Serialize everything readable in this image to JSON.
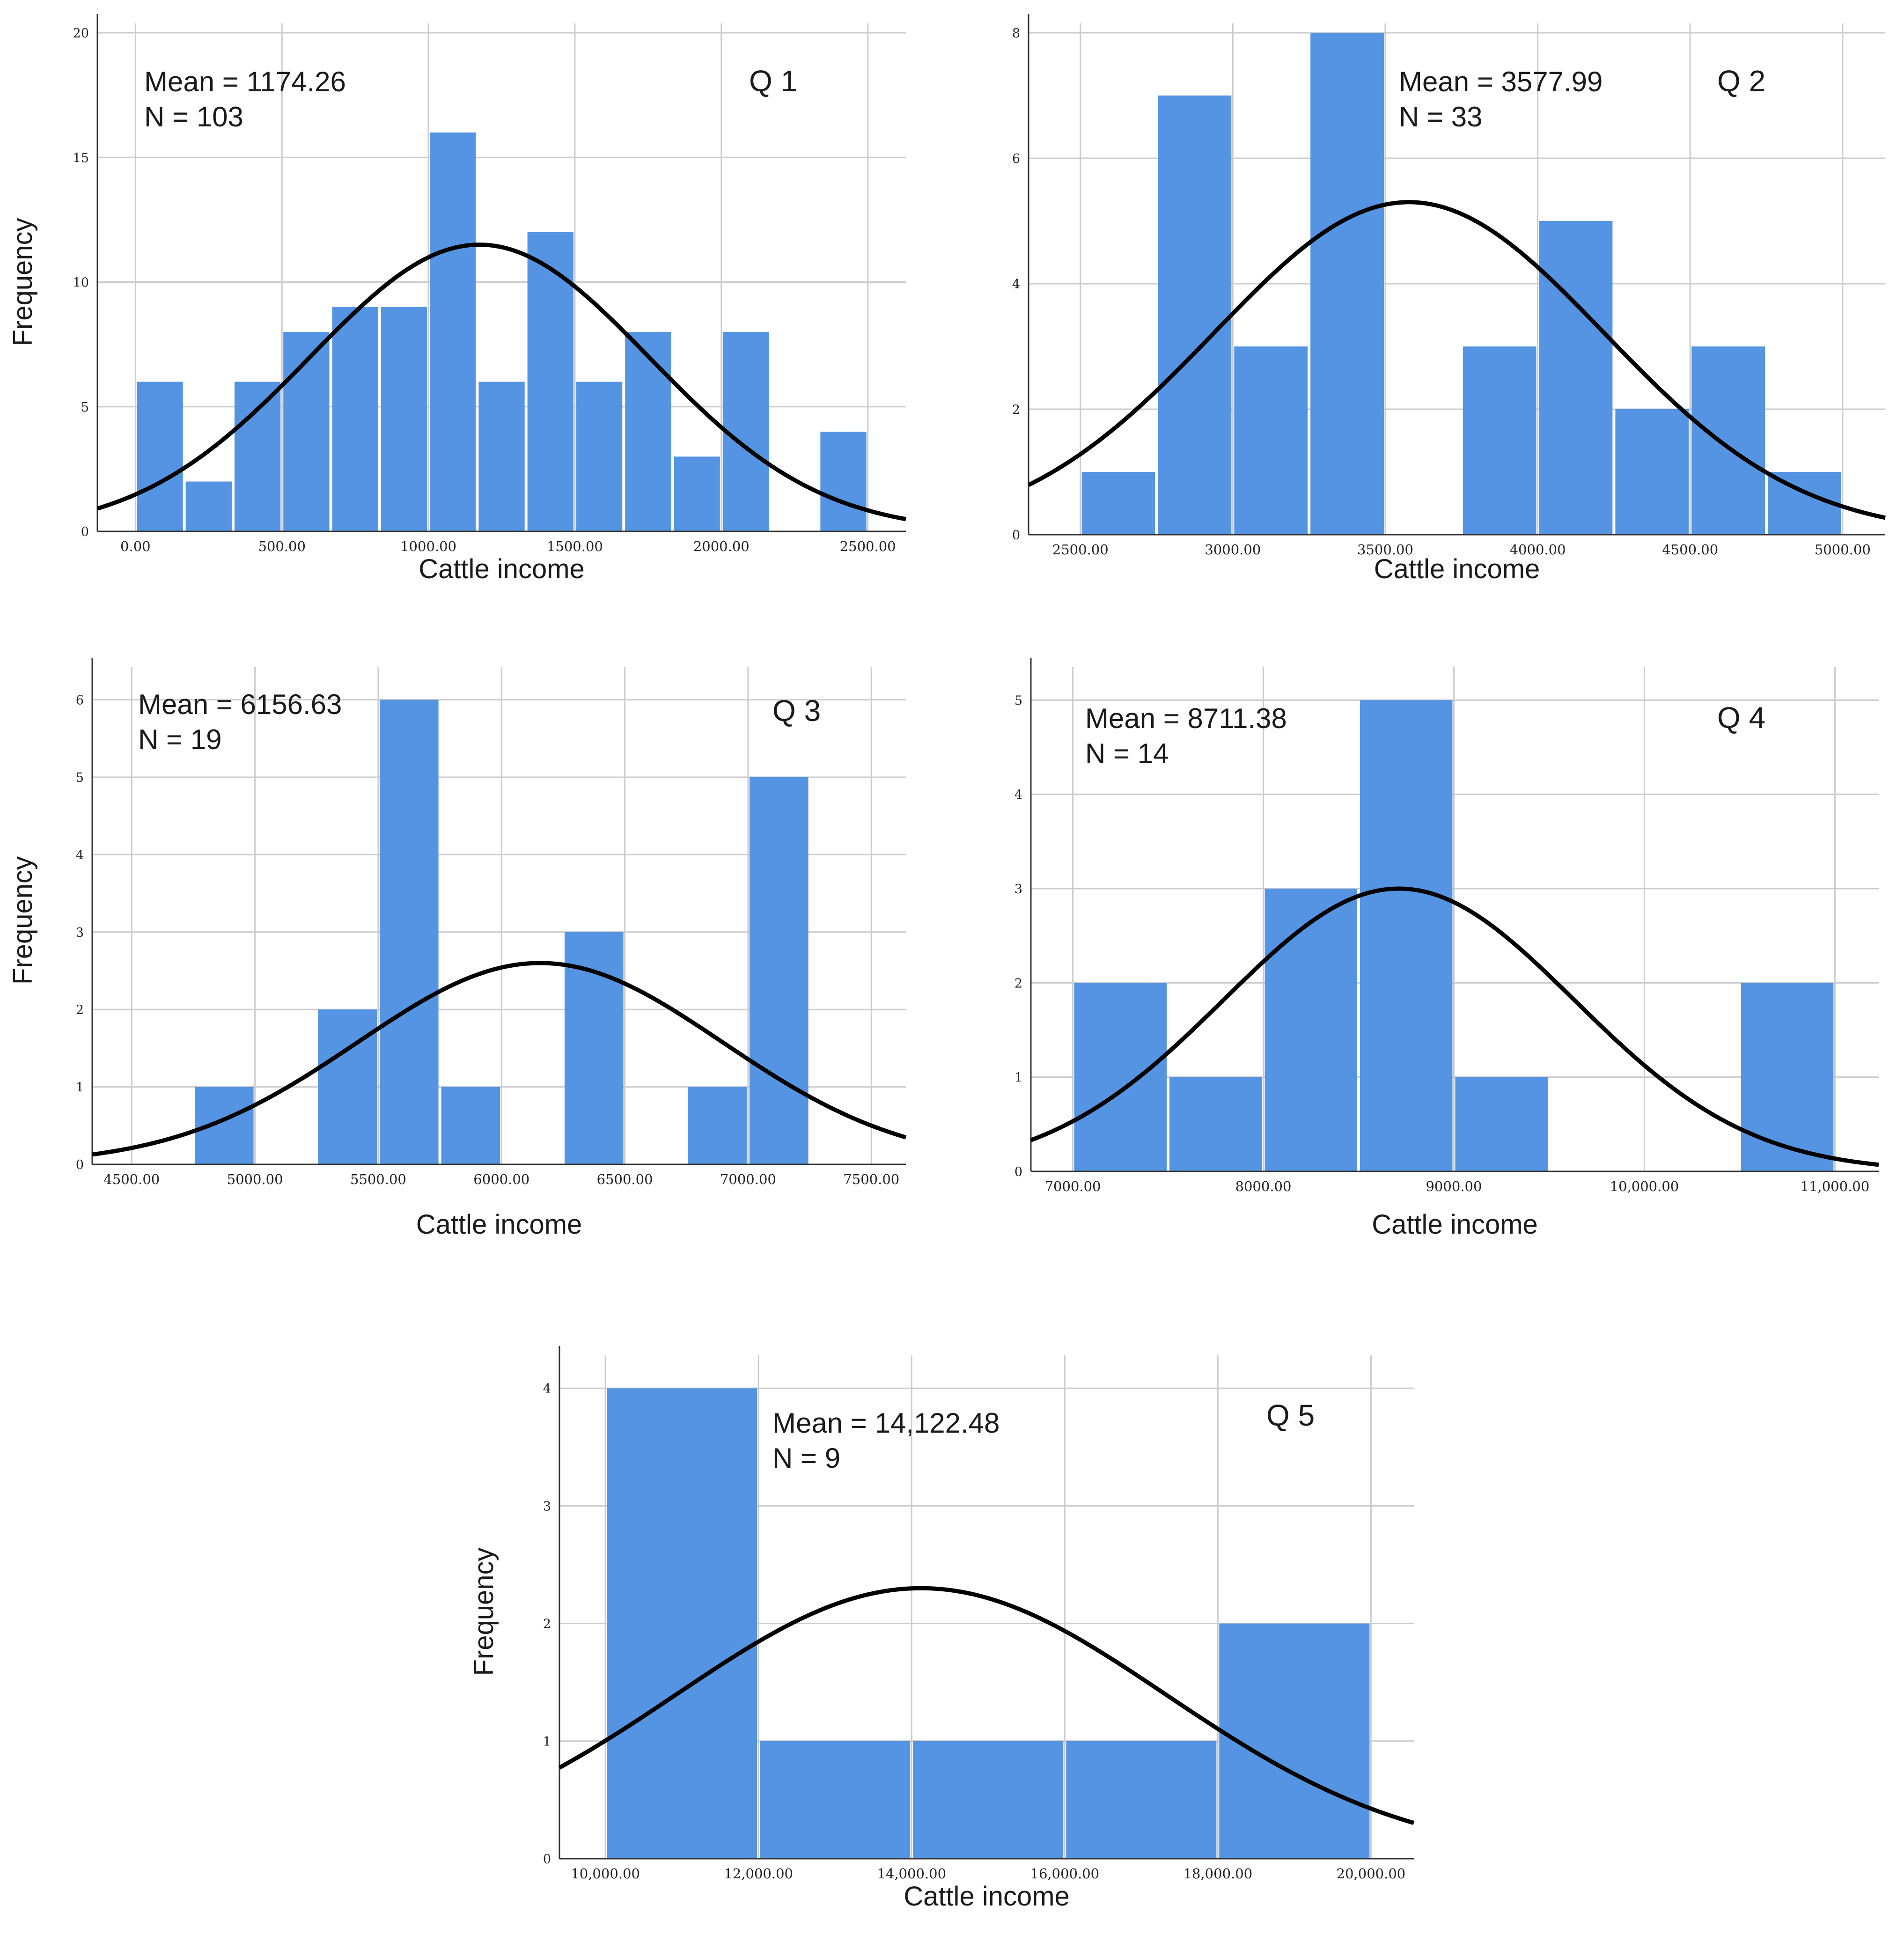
{
  "figure": {
    "background": "#ffffff"
  },
  "chart_data": [
    {
      "type": "bar",
      "subtype": "histogram-with-normal-curve",
      "title": "Q 1",
      "mean_label": "Mean = 1174.26",
      "n_label": "N = 103",
      "mean": 1174.26,
      "n": 103,
      "xlabel": "Cattle income",
      "ylabel": "Frequency",
      "xlim": [
        -130,
        2630
      ],
      "ylim": [
        0,
        20
      ],
      "xticks": [
        0,
        500,
        1000,
        1500,
        2000,
        2500
      ],
      "xtick_labels": [
        "0.00",
        "500.00",
        "1000.00",
        "1500.00",
        "2000.00",
        "2500.00"
      ],
      "yticks": [
        0,
        5,
        10,
        15,
        20
      ],
      "ytick_labels": [
        "0",
        "5",
        "10",
        "15",
        "20"
      ],
      "bin_width": 166.7,
      "bin_starts": [
        0,
        166.7,
        333.3,
        500,
        666.7,
        833.3,
        1000,
        1166.7,
        1333.3,
        1500,
        1666.7,
        1833.3,
        2000,
        2166.7,
        2333.3
      ],
      "values": [
        6,
        2,
        6,
        8,
        9,
        9,
        16,
        6,
        12,
        6,
        8,
        3,
        8,
        0,
        4
      ],
      "curve": {
        "mean": 1174.26,
        "peak": 11.5,
        "sd": 580
      },
      "colors": {
        "bar": "#5494e3",
        "curve": "#000000",
        "grid": "#cccccc"
      }
    },
    {
      "type": "bar",
      "subtype": "histogram-with-normal-curve",
      "title": "Q 2",
      "mean_label": "Mean = 3577.99",
      "n_label": "N = 33",
      "mean": 3577.99,
      "n": 33,
      "xlabel": "Cattle income",
      "ylabel": "",
      "xlim": [
        2330,
        5140
      ],
      "ylim": [
        0,
        8
      ],
      "xticks": [
        2500,
        3000,
        3500,
        4000,
        4500,
        5000
      ],
      "xtick_labels": [
        "2500.00",
        "3000.00",
        "3500.00",
        "4000.00",
        "4500.00",
        "5000.00"
      ],
      "yticks": [
        0,
        2,
        4,
        6,
        8
      ],
      "ytick_labels": [
        "0",
        "2",
        "4",
        "6",
        "8"
      ],
      "bin_width": 250,
      "bin_starts": [
        2500,
        2750,
        3000,
        3250,
        3500,
        3750,
        4000,
        4250,
        4500,
        4750
      ],
      "values": [
        1,
        7,
        3,
        8,
        0,
        3,
        5,
        2,
        3,
        1
      ],
      "curve": {
        "mean": 3577.99,
        "peak": 5.3,
        "sd": 640
      },
      "colors": {
        "bar": "#5494e3",
        "curve": "#000000",
        "grid": "#cccccc"
      }
    },
    {
      "type": "bar",
      "subtype": "histogram-with-normal-curve",
      "title": "Q 3",
      "mean_label": "Mean = 6156.63",
      "n_label": "N = 19",
      "mean": 6156.63,
      "n": 19,
      "xlabel": "Cattle income",
      "ylabel": "Frequency",
      "xlim": [
        4340,
        7640
      ],
      "ylim": [
        0,
        6.3
      ],
      "xticks": [
        4500,
        5000,
        5500,
        6000,
        6500,
        7000,
        7500
      ],
      "xtick_labels": [
        "4500.00",
        "5000.00",
        "5500.00",
        "6000.00",
        "6500.00",
        "7000.00",
        "7500.00"
      ],
      "yticks": [
        0,
        1,
        2,
        3,
        4,
        5,
        6
      ],
      "ytick_labels": [
        "0",
        "1",
        "2",
        "3",
        "4",
        "5",
        "6"
      ],
      "bin_width": 250,
      "bin_starts": [
        4750,
        5000,
        5250,
        5500,
        5750,
        6000,
        6250,
        6500,
        6750,
        7000
      ],
      "values": [
        1,
        0,
        2,
        6,
        1,
        0,
        3,
        0,
        1,
        5
      ],
      "curve": {
        "mean": 6156.63,
        "peak": 2.6,
        "sd": 740
      },
      "colors": {
        "bar": "#5494e3",
        "curve": "#000000",
        "grid": "#cccccc"
      }
    },
    {
      "type": "bar",
      "subtype": "histogram-with-normal-curve",
      "title": "Q 4",
      "mean_label": "Mean = 8711.38",
      "n_label": "N = 14",
      "mean": 8711.38,
      "n": 14,
      "xlabel": "Cattle income",
      "ylabel": "",
      "xlim": [
        6780,
        11230
      ],
      "ylim": [
        0,
        5.25
      ],
      "xticks": [
        7000,
        8000,
        9000,
        10000,
        11000
      ],
      "xtick_labels": [
        "7000.00",
        "8000.00",
        "9000.00",
        "10,000.00",
        "11,000.00"
      ],
      "yticks": [
        0,
        1,
        2,
        3,
        4,
        5
      ],
      "ytick_labels": [
        "0",
        "1",
        "2",
        "3",
        "4",
        "5"
      ],
      "bin_width": 500,
      "bin_starts": [
        7000,
        7500,
        8000,
        8500,
        9000,
        9500,
        10000,
        10500
      ],
      "values": [
        2,
        1,
        3,
        5,
        1,
        0,
        0,
        2
      ],
      "curve": {
        "mean": 8711.38,
        "peak": 3.0,
        "sd": 920
      },
      "colors": {
        "bar": "#5494e3",
        "curve": "#000000",
        "grid": "#cccccc"
      }
    },
    {
      "type": "bar",
      "subtype": "histogram-with-normal-curve",
      "title": "Q 5",
      "mean_label": "Mean = 14,122.48",
      "n_label": "N = 9",
      "mean": 14122.48,
      "n": 9,
      "xlabel": "Cattle income",
      "ylabel": "Frequency",
      "xlim": [
        9400,
        20560
      ],
      "ylim": [
        0,
        4.2
      ],
      "xticks": [
        10000,
        12000,
        14000,
        16000,
        18000,
        20000
      ],
      "xtick_labels": [
        "10,000.00",
        "12,000.00",
        "14,000.00",
        "16,000.00",
        "18,000.00",
        "20,000.00"
      ],
      "yticks": [
        0,
        1,
        2,
        3,
        4
      ],
      "ytick_labels": [
        "0",
        "1",
        "2",
        "3",
        "4"
      ],
      "bin_width": 2000,
      "bin_starts": [
        10000,
        12000,
        14000,
        16000,
        18000
      ],
      "values": [
        4,
        1,
        1,
        1,
        2
      ],
      "curve": {
        "mean": 14122.48,
        "peak": 2.3,
        "sd": 3200
      },
      "colors": {
        "bar": "#5494e3",
        "curve": "#000000",
        "grid": "#cccccc"
      }
    }
  ]
}
